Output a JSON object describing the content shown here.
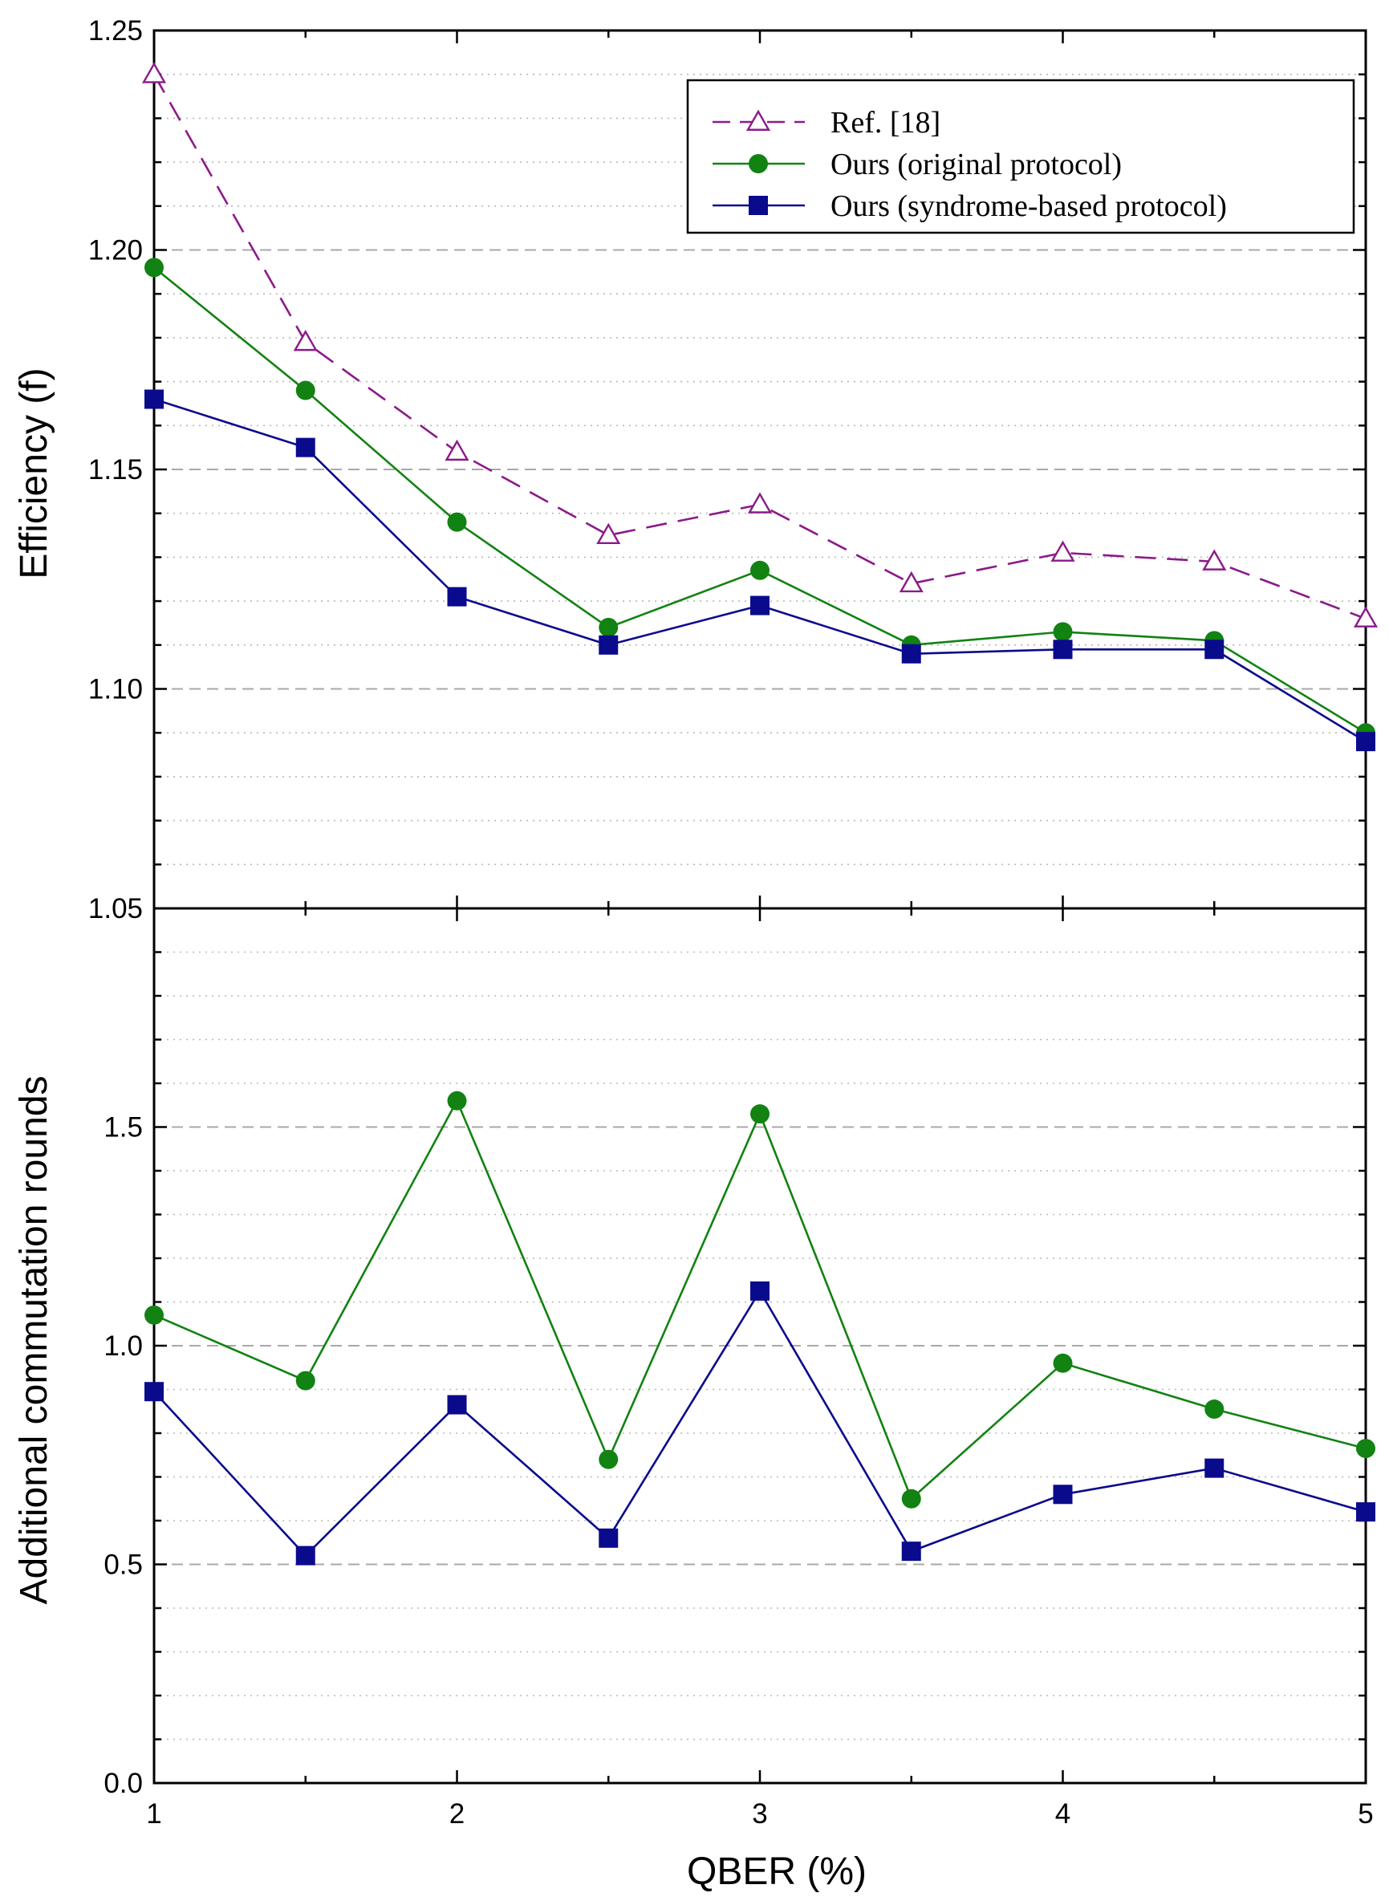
{
  "chart_data": [
    {
      "type": "line",
      "panel": "top",
      "ylabel": "Efficiency (f)",
      "xlabel": "",
      "xlim": [
        1,
        5
      ],
      "ylim": [
        1.05,
        1.25
      ],
      "yticks": [
        "1.05",
        "1.10",
        "1.15",
        "1.20",
        "1.25"
      ],
      "ytick_values": [
        1.05,
        1.1,
        1.15,
        1.2,
        1.25
      ],
      "grid": "horizontal, dashed at major ticks, dotted at minor ticks",
      "legend_position": "top-right",
      "x": [
        1,
        1.5,
        2,
        2.5,
        3,
        3.5,
        4,
        4.5,
        5
      ],
      "series": [
        {
          "name": "Ref. [18]",
          "color": "#8B1A89",
          "marker": "open-triangle",
          "line": "dashed",
          "values": [
            1.24,
            1.179,
            1.154,
            1.135,
            1.142,
            1.124,
            1.131,
            1.129,
            1.116
          ]
        },
        {
          "name": "Ours (original protocol)",
          "color": "#128212",
          "marker": "filled-circle",
          "line": "solid",
          "values": [
            1.196,
            1.168,
            1.138,
            1.114,
            1.127,
            1.11,
            1.113,
            1.111,
            1.09
          ]
        },
        {
          "name": "Ours (syndrome-based protocol)",
          "color": "#0A0A8C",
          "marker": "filled-square",
          "line": "solid",
          "values": [
            1.166,
            1.155,
            1.121,
            1.11,
            1.119,
            1.108,
            1.109,
            1.109,
            1.088
          ]
        }
      ]
    },
    {
      "type": "line",
      "panel": "bottom",
      "ylabel": "Additional commutation rounds",
      "xlabel": "QBER (%)",
      "xlim": [
        1,
        5
      ],
      "xticks": [
        "1",
        "2",
        "3",
        "4",
        "5"
      ],
      "xtick_values": [
        1,
        2,
        3,
        4,
        5
      ],
      "ylim": [
        0.0,
        2.0
      ],
      "yticks": [
        "0.0",
        "0.5",
        "1.0",
        "1.5"
      ],
      "ytick_values": [
        0.0,
        0.5,
        1.0,
        1.5
      ],
      "grid": "horizontal, dashed at major ticks, dotted at minor ticks",
      "x": [
        1,
        1.5,
        2,
        2.5,
        3,
        3.5,
        4,
        4.5,
        5
      ],
      "series": [
        {
          "name": "Ours (original protocol)",
          "color": "#128212",
          "marker": "filled-circle",
          "line": "solid",
          "values": [
            1.07,
            0.92,
            1.56,
            0.74,
            1.53,
            0.65,
            0.96,
            0.855,
            0.765
          ]
        },
        {
          "name": "Ours (syndrome-based protocol)",
          "color": "#0A0A8C",
          "marker": "filled-square",
          "line": "solid",
          "values": [
            0.895,
            0.52,
            0.865,
            0.56,
            1.125,
            0.53,
            0.66,
            0.72,
            0.62
          ]
        }
      ]
    }
  ]
}
